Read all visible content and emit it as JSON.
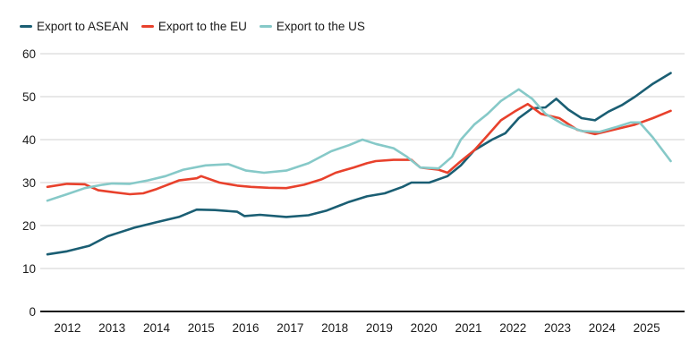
{
  "chart_data": {
    "type": "line",
    "title": "",
    "xlabel": "",
    "ylabel": "",
    "xlim": [
      2012,
      2026
    ],
    "ylim": [
      0,
      60
    ],
    "yticks": [
      0,
      10,
      20,
      30,
      40,
      50,
      60
    ],
    "xtick_labels": [
      "2012",
      "2013",
      "2014",
      "2015",
      "2016",
      "2017",
      "2018",
      "2019",
      "2020",
      "2021",
      "2022",
      "2023",
      "2024",
      "2025"
    ],
    "grid": true,
    "legend": "top-left",
    "series": [
      {
        "name": "Export to ASEAN",
        "color": "#1a5e73",
        "x": [
          2012.0,
          2012.44,
          2012.94,
          2013.35,
          2013.95,
          2014.45,
          2014.95,
          2015.35,
          2015.76,
          2016.26,
          2016.42,
          2016.77,
          2017.36,
          2017.86,
          2018.27,
          2018.77,
          2019.17,
          2019.57,
          2019.97,
          2020.17,
          2020.57,
          2020.98,
          2021.28,
          2021.58,
          2021.98,
          2022.28,
          2022.58,
          2022.88,
          2023.18,
          2023.42,
          2023.69,
          2023.99,
          2024.29,
          2024.59,
          2024.89,
          2025.19,
          2025.59,
          2025.99
        ],
        "y": [
          13.3,
          14,
          15.3,
          17.5,
          19.5,
          20.8,
          22,
          23.7,
          23.6,
          23.2,
          22.2,
          22.5,
          22,
          22.4,
          23.5,
          25.5,
          26.8,
          27.5,
          29,
          30,
          30,
          31.5,
          34,
          37.5,
          40,
          41.5,
          45,
          47.3,
          47.5,
          49.5,
          47,
          45,
          44.5,
          46.5,
          48,
          50,
          53,
          55.5
        ]
      },
      {
        "name": "Export to the EU",
        "color": "#e8412c",
        "x": [
          2012.0,
          2012.44,
          2012.84,
          2013.14,
          2013.45,
          2013.85,
          2014.15,
          2014.45,
          2014.95,
          2015.35,
          2015.45,
          2015.86,
          2016.26,
          2016.57,
          2016.96,
          2017.36,
          2017.76,
          2018.16,
          2018.47,
          2018.87,
          2019.17,
          2019.37,
          2019.77,
          2020.17,
          2020.37,
          2020.78,
          2020.98,
          2021.28,
          2021.58,
          2021.88,
          2022.18,
          2022.48,
          2022.78,
          2023.08,
          2023.49,
          2023.89,
          2024.29,
          2024.79,
          2025.19,
          2025.59,
          2025.99
        ],
        "y": [
          29,
          29.7,
          29.6,
          28.2,
          27.8,
          27.3,
          27.5,
          28.5,
          30.5,
          31,
          31.5,
          30,
          29.3,
          29,
          28.8,
          28.7,
          29.5,
          30.8,
          32.3,
          33.5,
          34.5,
          35,
          35.3,
          35.3,
          33.5,
          33,
          32.3,
          35,
          37.5,
          41,
          44.5,
          46.5,
          48.3,
          46,
          45,
          42.3,
          41.3,
          42.5,
          43.5,
          45,
          46.7
        ]
      },
      {
        "name": "Export to the US",
        "color": "#86c9c8",
        "x": [
          2012.0,
          2012.44,
          2012.84,
          2013.24,
          2013.45,
          2013.85,
          2014.25,
          2014.65,
          2015.05,
          2015.55,
          2016.06,
          2016.46,
          2016.86,
          2017.36,
          2017.86,
          2018.37,
          2018.77,
          2019.07,
          2019.37,
          2019.77,
          2020.07,
          2020.37,
          2020.78,
          2021.08,
          2021.28,
          2021.58,
          2021.88,
          2022.18,
          2022.58,
          2022.88,
          2023.18,
          2023.59,
          2023.99,
          2024.39,
          2024.79,
          2025.09,
          2025.29,
          2025.59,
          2025.99
        ],
        "y": [
          25.8,
          27.3,
          28.7,
          29.5,
          29.8,
          29.7,
          30.5,
          31.5,
          33,
          34,
          34.3,
          32.8,
          32.3,
          32.8,
          34.5,
          37.3,
          38.7,
          40,
          39,
          38,
          36,
          33.5,
          33.3,
          36,
          40,
          43.5,
          46,
          49,
          51.7,
          49.5,
          46,
          43.5,
          42,
          41.8,
          43,
          44,
          44,
          40.5,
          35
        ]
      }
    ]
  }
}
